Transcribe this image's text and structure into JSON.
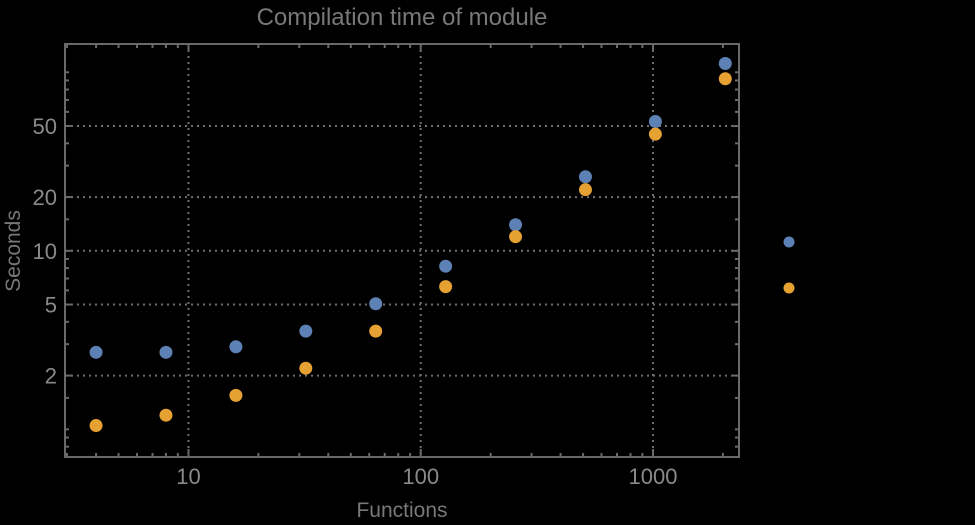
{
  "background_color": "#000000",
  "chart_data": {
    "type": "scatter",
    "title": "Compilation time of module",
    "xlabel": "Functions",
    "ylabel": "Seconds",
    "x_scale": "log",
    "y_scale": "log",
    "xlim": [
      2.94,
      2346
    ],
    "ylim": [
      0.7,
      144
    ],
    "grid": "major-dotted",
    "grid_color": "#6e6e6e",
    "frame_color": "#696969",
    "label_color": "#8a8a8a",
    "x_ticks_major": [
      10,
      100,
      1000
    ],
    "x_tick_labels": [
      "10",
      "100",
      "1000"
    ],
    "x_ticks_minor": [
      3,
      4,
      5,
      6,
      7,
      8,
      9,
      20,
      30,
      40,
      50,
      60,
      70,
      80,
      90,
      200,
      300,
      400,
      500,
      600,
      700,
      800,
      900,
      2000
    ],
    "y_ticks_major": [
      2,
      5,
      10,
      20,
      50
    ],
    "y_tick_labels": [
      "2",
      "5",
      "10",
      "20",
      "50"
    ],
    "y_ticks_minor": [
      0.8,
      0.9,
      1,
      1.5,
      3,
      4,
      6,
      7,
      8,
      9,
      15,
      30,
      40,
      60,
      70,
      80,
      90,
      100
    ],
    "x": [
      4,
      8,
      16,
      32,
      64,
      128,
      256,
      512,
      1024,
      2048
    ],
    "series": [
      {
        "name": "series-blue",
        "color": "#5e81b5",
        "marker": "circle",
        "values": [
          2.7,
          2.7,
          2.9,
          3.55,
          5.05,
          8.2,
          14,
          26,
          53,
          112
        ]
      },
      {
        "name": "series-orange",
        "color": "#e5a131",
        "marker": "circle",
        "values": [
          1.05,
          1.2,
          1.55,
          2.2,
          3.55,
          6.3,
          12,
          22,
          45,
          92
        ]
      }
    ],
    "legend": {
      "position": "right-outside",
      "items": [
        {
          "label": "",
          "color": "#5e81b5"
        },
        {
          "label": "",
          "color": "#e5a131"
        }
      ]
    }
  }
}
